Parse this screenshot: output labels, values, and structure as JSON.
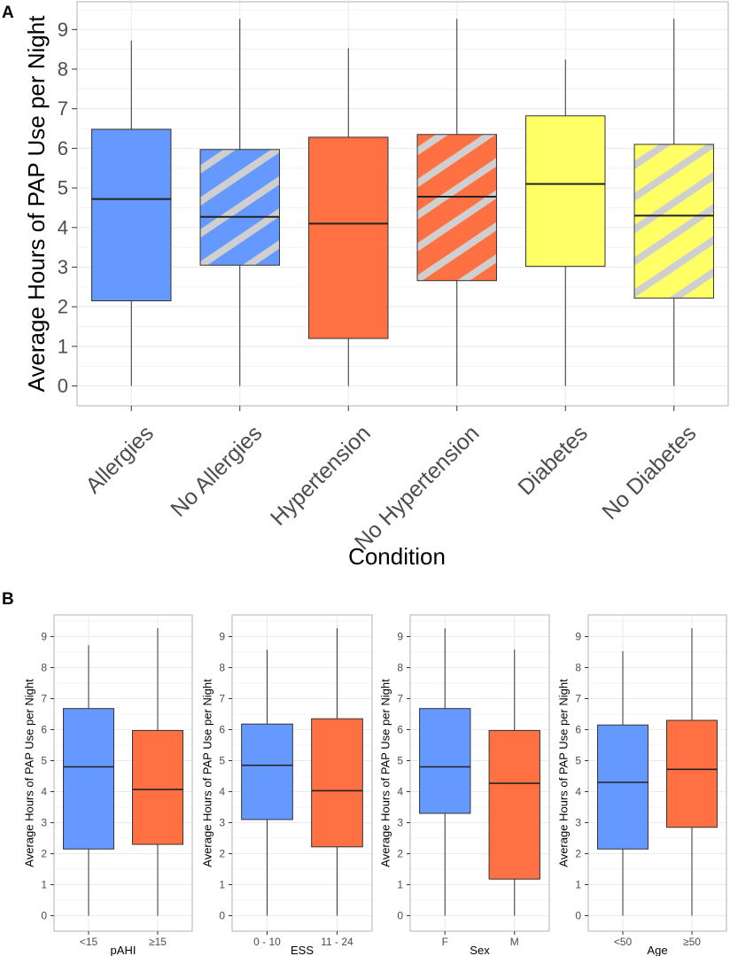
{
  "panel_labels": [
    "A",
    "B"
  ],
  "colors": {
    "blue": "#6699ff",
    "orange": "#ff7043",
    "yellow": "#ffff66",
    "hatch": "#cfcfcf",
    "grid": "#ebebeb",
    "frame": "#b3b3b3"
  },
  "chart_data": [
    {
      "type": "box",
      "panel": "A",
      "title": "",
      "xlabel": "Condition",
      "ylabel": "Average Hours of PAP Use per Night",
      "ylim": [
        -0.5,
        9.7
      ],
      "yticks": [
        0,
        1,
        2,
        3,
        4,
        5,
        6,
        7,
        8,
        9
      ],
      "categories": [
        "Allergies",
        "No Allergies",
        "Hypertension",
        "No Hypertension",
        "Diabetes",
        "No Diabetes"
      ],
      "boxes": [
        {
          "label": "Allergies",
          "min": 0,
          "q1": 2.15,
          "median": 4.72,
          "q3": 6.48,
          "max": 8.72,
          "color": "blue",
          "hatched": false
        },
        {
          "label": "No Allergies",
          "min": 0,
          "q1": 3.05,
          "median": 4.27,
          "q3": 5.97,
          "max": 9.27,
          "color": "blue",
          "hatched": true
        },
        {
          "label": "Hypertension",
          "min": 0,
          "q1": 1.2,
          "median": 4.1,
          "q3": 6.28,
          "max": 8.53,
          "color": "orange",
          "hatched": false
        },
        {
          "label": "No Hypertension",
          "min": 0,
          "q1": 2.66,
          "median": 4.78,
          "q3": 6.35,
          "max": 9.27,
          "color": "orange",
          "hatched": true
        },
        {
          "label": "Diabetes",
          "min": 0,
          "q1": 3.02,
          "median": 5.1,
          "q3": 6.82,
          "max": 8.24,
          "color": "yellow",
          "hatched": false
        },
        {
          "label": "No Diabetes",
          "min": 0,
          "q1": 2.22,
          "median": 4.3,
          "q3": 6.1,
          "max": 9.27,
          "color": "yellow",
          "hatched": true
        }
      ]
    },
    {
      "type": "box",
      "panel": "B",
      "xlabel": "pAHI",
      "ylabel": "Average Hours of PAP Use per Night",
      "ylim": [
        -0.5,
        9.7
      ],
      "yticks": [
        0,
        1,
        2,
        3,
        4,
        5,
        6,
        7,
        8,
        9
      ],
      "categories": [
        "<15",
        "≥15"
      ],
      "boxes": [
        {
          "label": "<15",
          "min": 0,
          "q1": 2.15,
          "median": 4.8,
          "q3": 6.68,
          "max": 8.72,
          "color": "blue"
        },
        {
          "label": "≥15",
          "min": 0,
          "q1": 2.3,
          "median": 4.07,
          "q3": 5.97,
          "max": 9.27,
          "color": "orange"
        }
      ]
    },
    {
      "type": "box",
      "panel": "B",
      "xlabel": "ESS",
      "ylabel": "Average Hours of PAP Use per Night",
      "ylim": [
        -0.5,
        9.7
      ],
      "yticks": [
        0,
        1,
        2,
        3,
        4,
        5,
        6,
        7,
        8,
        9
      ],
      "categories": [
        "0 - 10",
        "11 - 24"
      ],
      "boxes": [
        {
          "label": "0 - 10",
          "min": 0,
          "q1": 3.1,
          "median": 4.85,
          "q3": 6.18,
          "max": 8.58,
          "color": "blue"
        },
        {
          "label": "11 - 24",
          "min": 0,
          "q1": 2.22,
          "median": 4.03,
          "q3": 6.35,
          "max": 9.27,
          "color": "orange"
        }
      ]
    },
    {
      "type": "box",
      "panel": "B",
      "xlabel": "Sex",
      "ylabel": "Average Hours of PAP Use per Night",
      "ylim": [
        -0.5,
        9.7
      ],
      "yticks": [
        0,
        1,
        2,
        3,
        4,
        5,
        6,
        7,
        8,
        9
      ],
      "categories": [
        "F",
        "M"
      ],
      "boxes": [
        {
          "label": "F",
          "min": 0,
          "q1": 3.3,
          "median": 4.8,
          "q3": 6.68,
          "max": 9.27,
          "color": "blue"
        },
        {
          "label": "M",
          "min": 0,
          "q1": 1.18,
          "median": 4.27,
          "q3": 5.97,
          "max": 8.58,
          "color": "orange"
        }
      ]
    },
    {
      "type": "box",
      "panel": "B",
      "xlabel": "Age",
      "ylabel": "Average Hours of PAP Use per Night",
      "ylim": [
        -0.5,
        9.7
      ],
      "yticks": [
        0,
        1,
        2,
        3,
        4,
        5,
        6,
        7,
        8,
        9
      ],
      "categories": [
        "<50",
        "≥50"
      ],
      "boxes": [
        {
          "label": "<50",
          "min": 0,
          "q1": 2.15,
          "median": 4.3,
          "q3": 6.15,
          "max": 8.53,
          "color": "blue"
        },
        {
          "label": "≥50",
          "min": 0,
          "q1": 2.85,
          "median": 4.72,
          "q3": 6.3,
          "max": 9.27,
          "color": "orange"
        }
      ]
    }
  ]
}
